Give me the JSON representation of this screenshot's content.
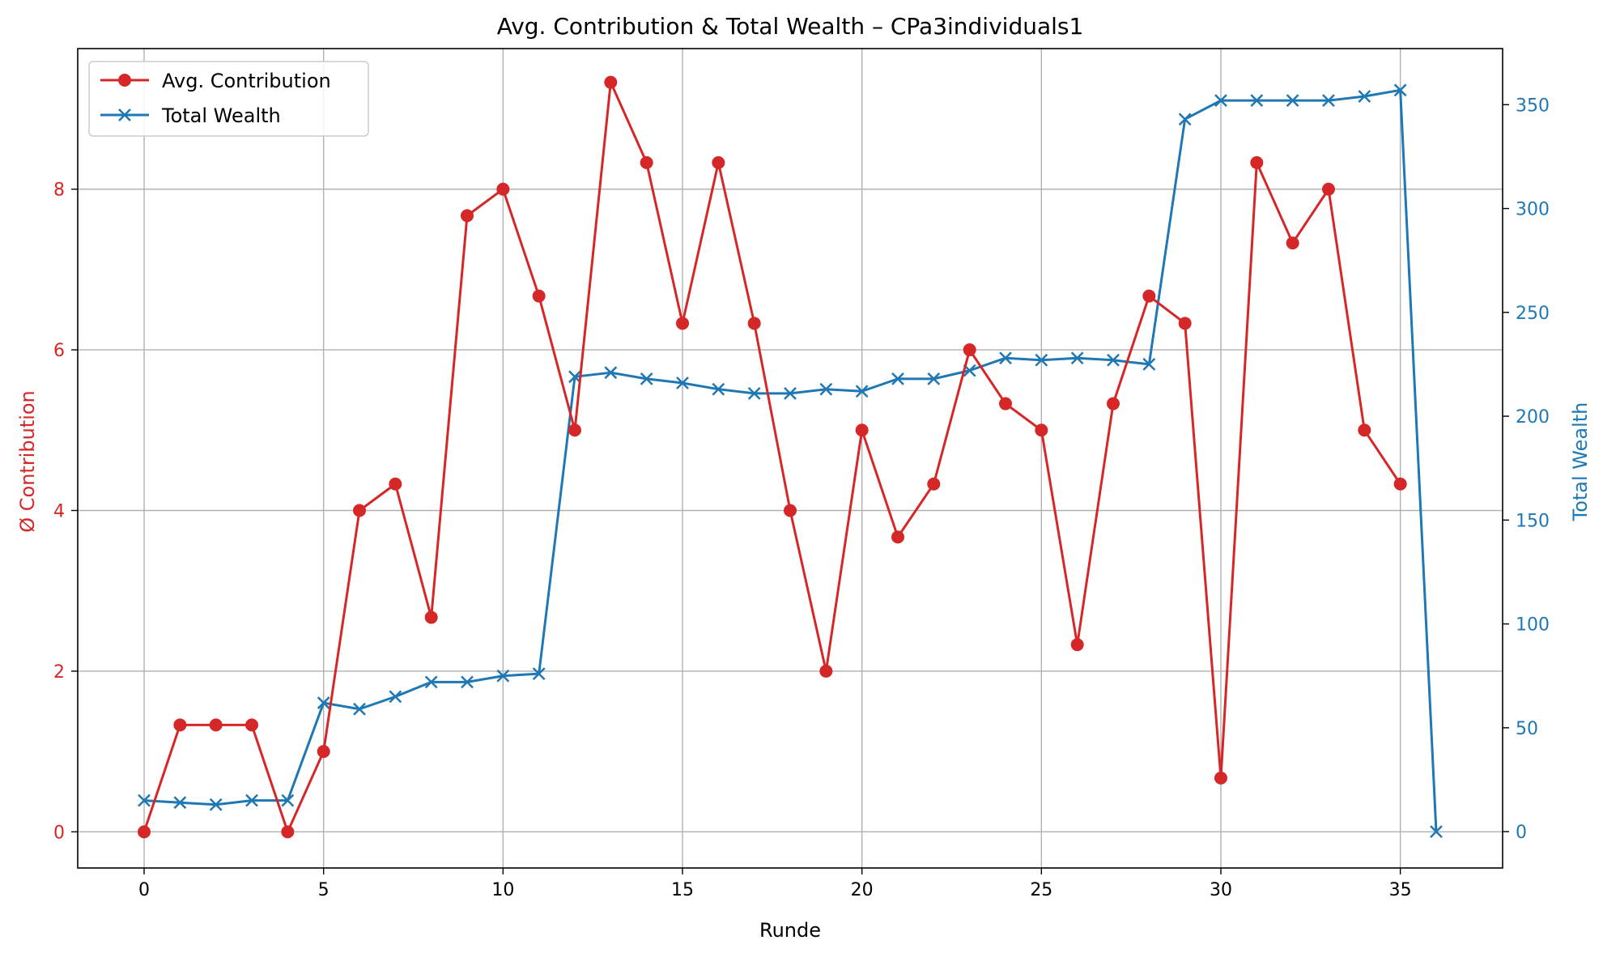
{
  "chart_data": {
    "type": "line",
    "title": "Avg. Contribution & Total Wealth – CPa3individuals1",
    "xlabel": "Runde",
    "ylabel_left": "Ø Contribution",
    "ylabel_right": "Total Wealth",
    "xlim": [
      -1.85,
      37.85
    ],
    "ylim_left": [
      -0.45,
      9.75
    ],
    "ylim_right": [
      -17.5,
      377
    ],
    "x_ticks": [
      0,
      5,
      10,
      15,
      20,
      25,
      30,
      35
    ],
    "y_ticks_left": [
      0,
      2,
      4,
      6,
      8
    ],
    "y_ticks_right": [
      0,
      50,
      100,
      150,
      200,
      250,
      300,
      350
    ],
    "grid": true,
    "legend_position": "upper-left",
    "colors": {
      "contribution": "#d62728",
      "wealth": "#1f77b4",
      "grid": "#b0b0b0",
      "axis": "#000000"
    },
    "series": [
      {
        "name": "Avg. Contribution",
        "axis": "left",
        "marker": "circle",
        "x": [
          0,
          1,
          2,
          3,
          4,
          5,
          6,
          7,
          8,
          9,
          10,
          11,
          12,
          13,
          14,
          15,
          16,
          17,
          18,
          19,
          20,
          21,
          22,
          23,
          24,
          25,
          26,
          27,
          28,
          29,
          30,
          31,
          32,
          33,
          34,
          35
        ],
        "values": [
          0,
          1.33,
          1.33,
          1.33,
          0,
          1.0,
          4.0,
          4.33,
          2.67,
          7.67,
          8.0,
          6.67,
          5.0,
          9.33,
          8.33,
          6.33,
          8.33,
          6.33,
          4.0,
          2.0,
          5.0,
          3.67,
          4.33,
          6.0,
          5.33,
          5.0,
          2.33,
          5.33,
          6.67,
          6.33,
          0.67,
          8.33,
          7.33,
          8.0,
          5.0,
          4.33
        ]
      },
      {
        "name": "Total Wealth",
        "axis": "right",
        "marker": "x",
        "x": [
          0,
          1,
          2,
          3,
          4,
          5,
          6,
          7,
          8,
          9,
          10,
          11,
          12,
          13,
          14,
          15,
          16,
          17,
          18,
          19,
          20,
          21,
          22,
          23,
          24,
          25,
          26,
          27,
          28,
          29,
          30,
          31,
          32,
          33,
          34,
          35,
          36
        ],
        "values": [
          15,
          14,
          13,
          15,
          15,
          62,
          59,
          65,
          72,
          72,
          75,
          76,
          219,
          221,
          218,
          216,
          213,
          211,
          211,
          213,
          212,
          218,
          218,
          222,
          228,
          227,
          228,
          227,
          225,
          343,
          352,
          352,
          352,
          352,
          354,
          357,
          0
        ]
      }
    ]
  }
}
